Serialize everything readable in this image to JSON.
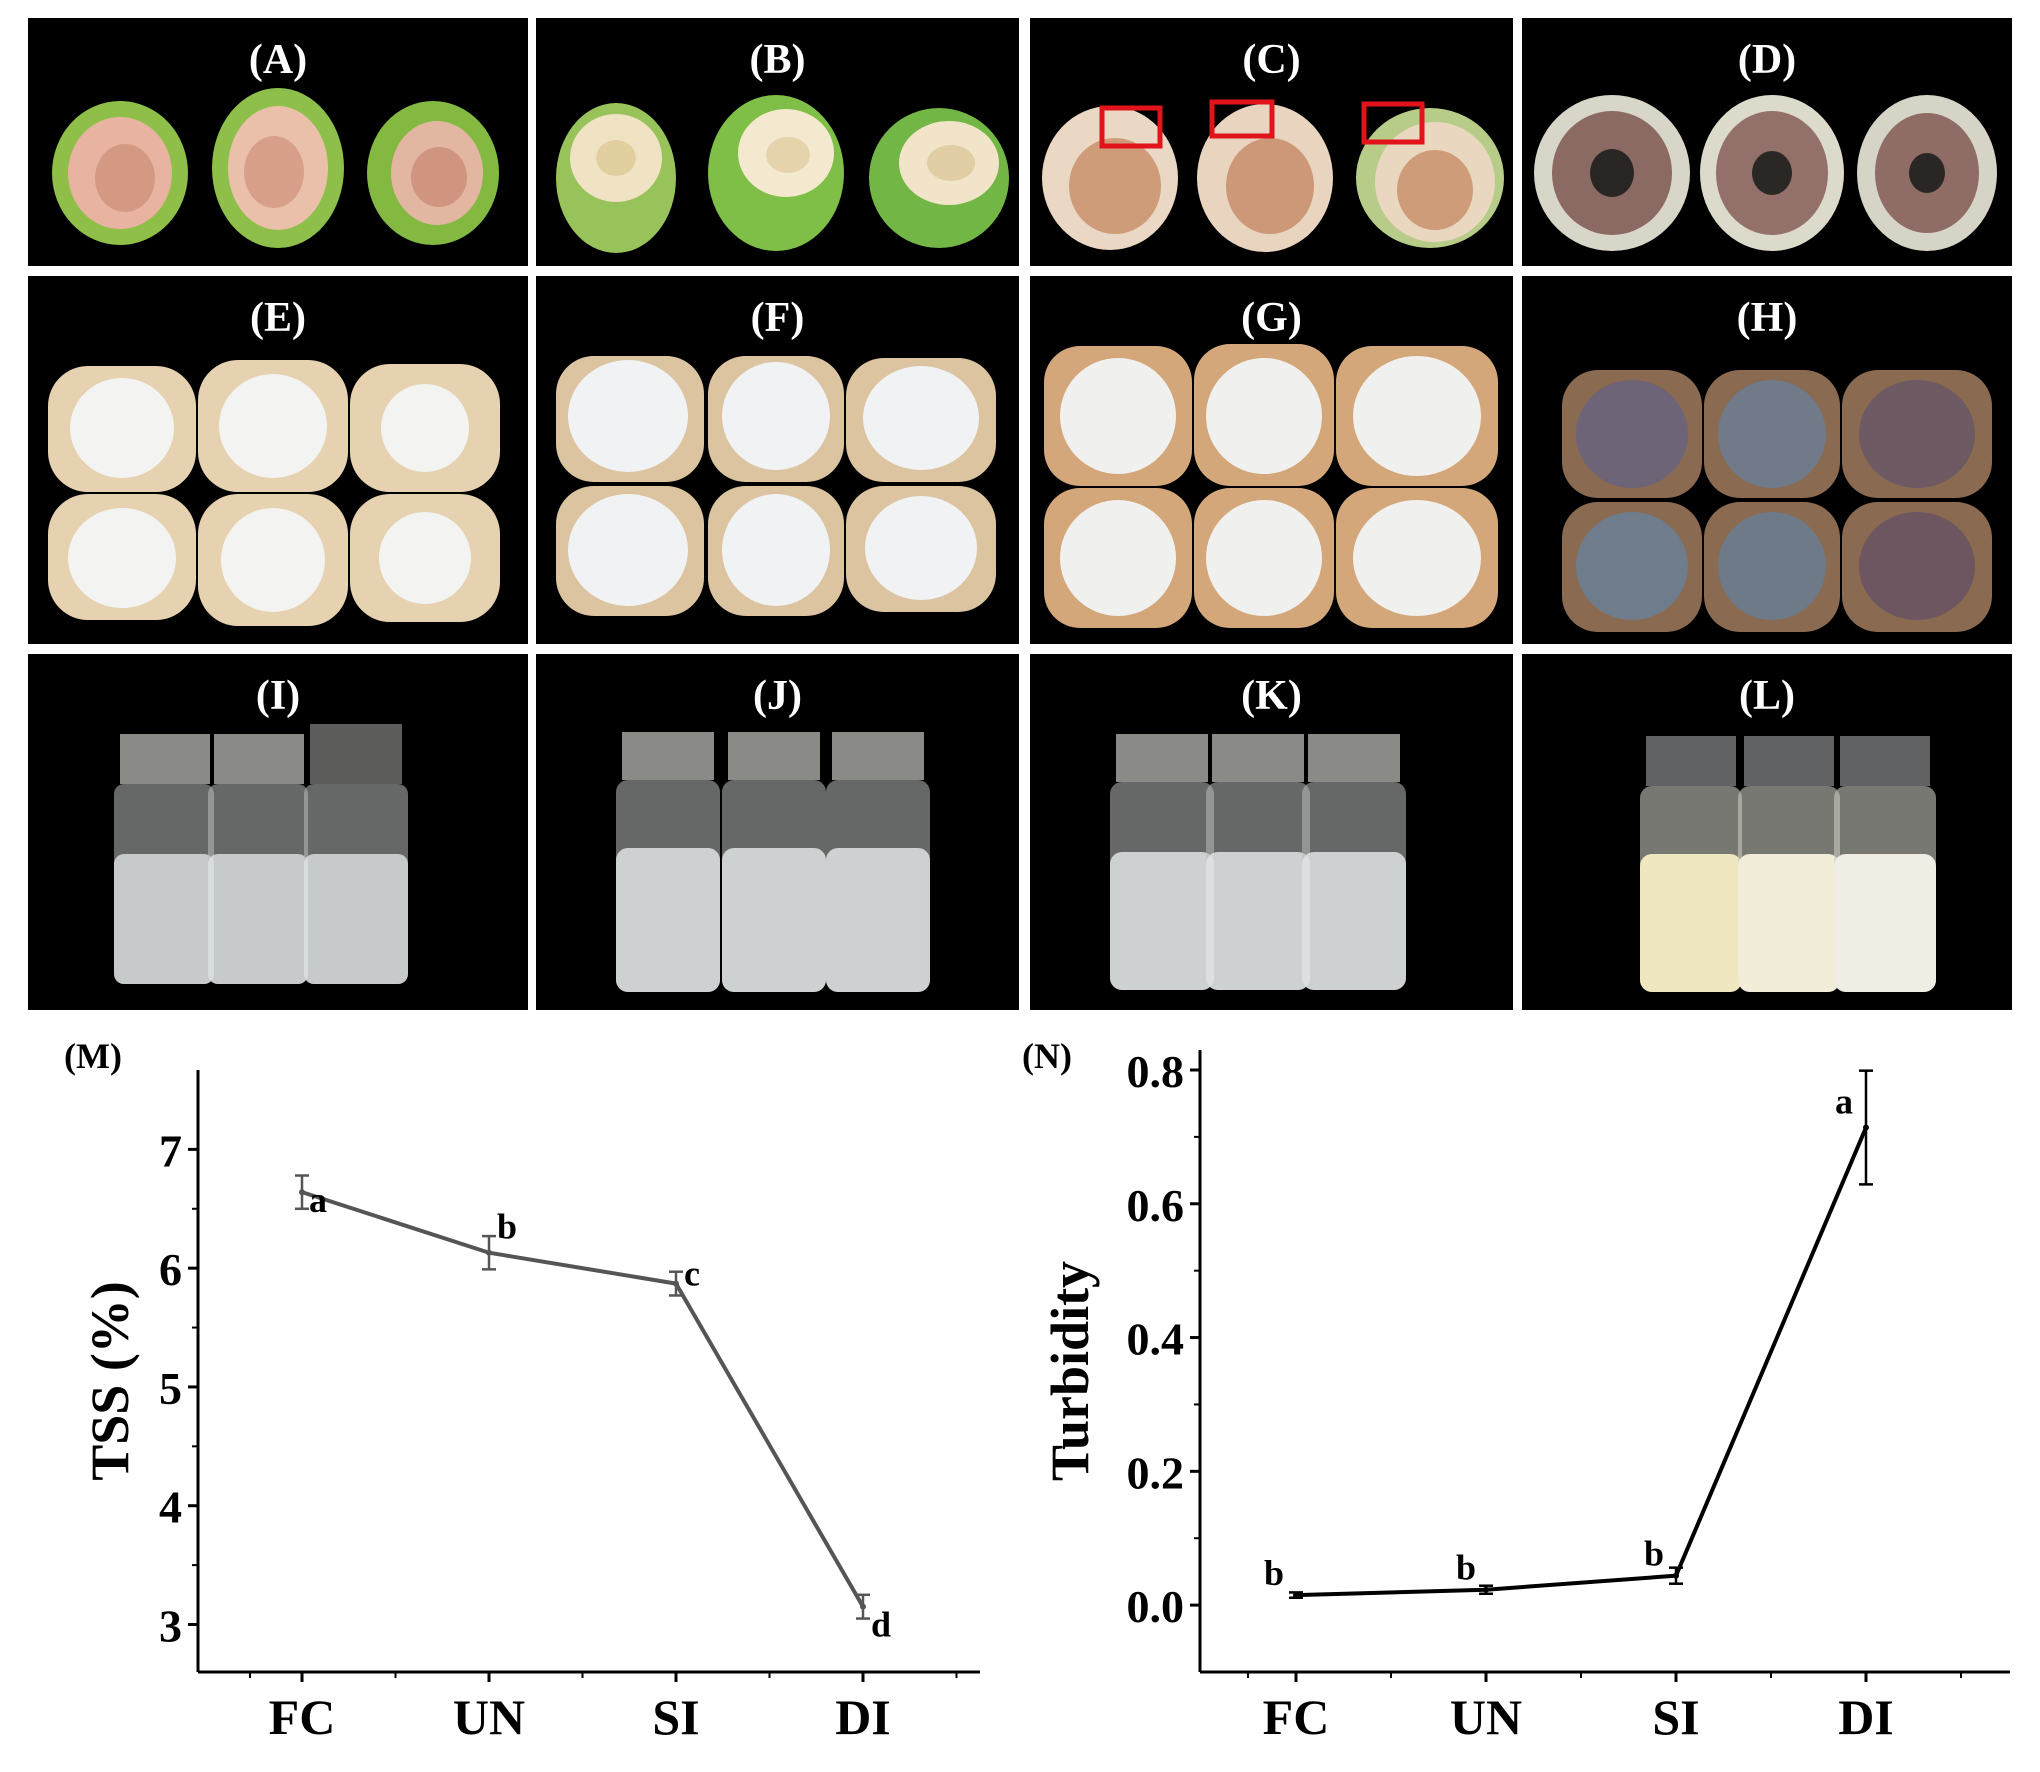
{
  "panels": {
    "A": "(A)",
    "B": "(B)",
    "C": "(C)",
    "D": "(D)",
    "E": "(E)",
    "F": "(F)",
    "G": "(G)",
    "H": "(H)",
    "I": "(I)",
    "J": "(J)",
    "K": "(K)",
    "L": "(L)"
  },
  "chart_data": [
    {
      "panel_label": "(M)",
      "type": "line",
      "categories": [
        "FC",
        "UN",
        "SI",
        "DI"
      ],
      "values": [
        6.64,
        6.13,
        5.87,
        3.15
      ],
      "errors": [
        0.14,
        0.14,
        0.1,
        0.1
      ],
      "letters": [
        "a",
        "b",
        "c",
        "d"
      ],
      "ylabel": "TSS (%)",
      "ylim": [
        2.6,
        7.5
      ],
      "yticks": [
        "3",
        "4",
        "5",
        "6",
        "7"
      ],
      "color": "#555555"
    },
    {
      "panel_label": "(N)",
      "type": "line",
      "categories": [
        "FC",
        "UN",
        "SI",
        "DI"
      ],
      "values": [
        0.015,
        0.023,
        0.044,
        0.714
      ],
      "errors": [
        0.004,
        0.006,
        0.012,
        0.085
      ],
      "letters": [
        "b",
        "b",
        "b",
        "a"
      ],
      "ylabel": "Turbidity",
      "ylim": [
        -0.1,
        0.8
      ],
      "yticks": [
        "0.0",
        "0.2",
        "0.4",
        "0.6",
        "0.8"
      ],
      "color": "#000000"
    }
  ]
}
